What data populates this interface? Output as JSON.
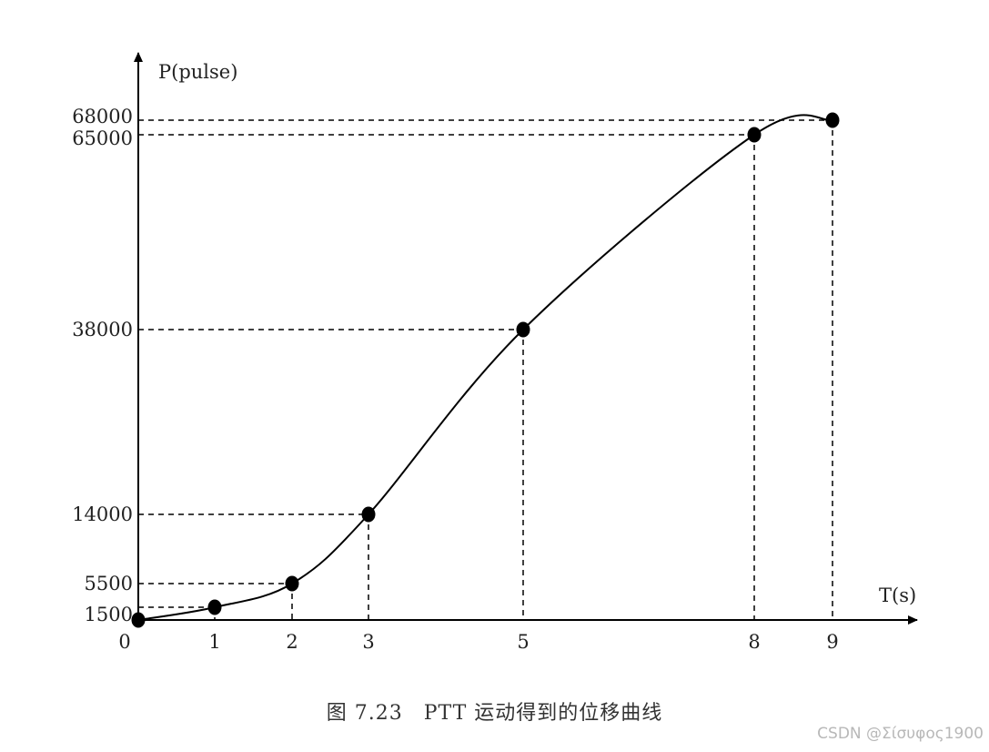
{
  "chart_data": {
    "type": "line",
    "ylabel": "P(pulse)",
    "xlabel": "T(s)",
    "points": [
      {
        "x": 0,
        "y": 0
      },
      {
        "x": 1,
        "y": 1500
      },
      {
        "x": 2,
        "y": 5500
      },
      {
        "x": 3,
        "y": 14000
      },
      {
        "x": 5,
        "y": 38000
      },
      {
        "x": 8,
        "y": 65000
      },
      {
        "x": 9,
        "y": 68000
      }
    ],
    "x_ticks": [
      "0",
      "1",
      "2",
      "3",
      "5",
      "8",
      "9"
    ],
    "y_ticks": [
      "1500",
      "5500",
      "14000",
      "38000",
      "65000",
      "68000"
    ],
    "dashed_guides": true,
    "markers": true,
    "line_color": "#000000"
  },
  "caption": "图 7.23　PTT 运动得到的位移曲线",
  "watermark": "CSDN @Σίσυφος1900"
}
